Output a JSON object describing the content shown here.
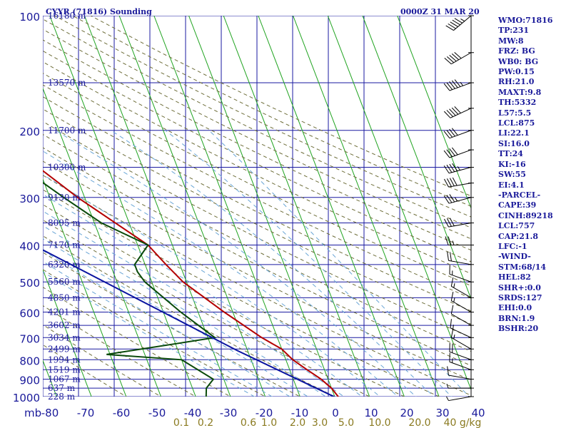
{
  "header": {
    "title": "CYYR (71816) Sounding",
    "time": "0000Z 31 MAR 20"
  },
  "indices": [
    "WMO:71816",
    "TP:231",
    "MW:8",
    "FRZ: BG",
    "WB0: BG",
    "PW:0.15",
    "RH:21.0",
    "MAXT:9.8",
    "TH:5332",
    "L57:5.5",
    "LCL:875",
    "LI:22.1",
    "SI:16.0",
    "TT:24",
    "KI:-16",
    "SW:55",
    "EI:4.1",
    "-PARCEL-",
    "CAPE:39",
    "CINH:89218",
    "LCL:757",
    "CAP:21.8",
    "LFC:-1",
    "-WIND-",
    "STM:68/14",
    "HEL:82",
    "SHR+:0.0",
    "SRDS:127",
    "EHI:0.0",
    "BRN:1.9",
    "BSHR:20"
  ],
  "chart_data": {
    "type": "line",
    "title": "CYYR (71816) Sounding",
    "ylabel": "mb",
    "ylim": [
      1000,
      100
    ],
    "xlim": [
      -80,
      0
    ],
    "pressure_ticks": [
      100,
      200,
      300,
      400,
      500,
      600,
      700,
      800,
      900,
      1000
    ],
    "temperature_ticks": [
      "-80",
      "-70",
      "-60",
      "-50",
      "-40",
      "-30",
      "-20",
      "-10",
      "0",
      "10",
      "20",
      "30",
      "40"
    ],
    "mixing_ratio_labels": [
      "0.1",
      "0.2",
      "0.6",
      "1.0",
      "2.0",
      "3.0",
      "5.0",
      "10.0",
      "20.0",
      "40 g/kg"
    ],
    "height_labels": [
      {
        "p": 100,
        "label": "16180 m"
      },
      {
        "p": 150,
        "label": "13570 m"
      },
      {
        "p": 200,
        "label": "11700 m"
      },
      {
        "p": 250,
        "label": "10300 m"
      },
      {
        "p": 300,
        "label": "9130 m"
      },
      {
        "p": 350,
        "label": "8095 m"
      },
      {
        "p": 400,
        "label": "7170 m"
      },
      {
        "p": 450,
        "label": "6320 m"
      },
      {
        "p": 500,
        "label": "5560 m"
      },
      {
        "p": 550,
        "label": "4850 m"
      },
      {
        "p": 600,
        "label": "4201 m"
      },
      {
        "p": 650,
        "label": "3602 m"
      },
      {
        "p": 700,
        "label": "3034 m"
      },
      {
        "p": 750,
        "label": "2499 m"
      },
      {
        "p": 800,
        "label": "1994 m"
      },
      {
        "p": 850,
        "label": "1519 m"
      },
      {
        "p": 900,
        "label": "1067 m"
      },
      {
        "p": 950,
        "label": "637 m"
      },
      {
        "p": 1000,
        "label": "228 m"
      }
    ],
    "series": [
      {
        "name": "Temperature",
        "color": "#b40000",
        "points": [
          {
            "p": 100,
            "t": -55
          },
          {
            "p": 110,
            "t": -55.5
          },
          {
            "p": 125,
            "t": -58
          },
          {
            "p": 140,
            "t": -57
          },
          {
            "p": 155,
            "t": -54
          },
          {
            "p": 170,
            "t": -54
          },
          {
            "p": 190,
            "t": -57
          },
          {
            "p": 200,
            "t": -58
          },
          {
            "p": 220,
            "t": -61
          },
          {
            "p": 230,
            "t": -62
          },
          {
            "p": 250,
            "t": -60
          },
          {
            "p": 300,
            "t": -52
          },
          {
            "p": 400,
            "t": -37
          },
          {
            "p": 450,
            "t": -34
          },
          {
            "p": 500,
            "t": -31
          },
          {
            "p": 600,
            "t": -22.5
          },
          {
            "p": 700,
            "t": -14.5
          },
          {
            "p": 750,
            "t": -10
          },
          {
            "p": 800,
            "t": -8
          },
          {
            "p": 850,
            "t": -5
          },
          {
            "p": 900,
            "t": -2
          },
          {
            "p": 950,
            "t": 0
          },
          {
            "p": 1000,
            "t": 1
          },
          {
            "p": 1015,
            "t": 1
          }
        ]
      },
      {
        "name": "Dewpoint",
        "color": "#0a4a0a",
        "points": [
          {
            "p": 100,
            "t": -84
          },
          {
            "p": 120,
            "t": -82
          },
          {
            "p": 130,
            "t": -79
          },
          {
            "p": 150,
            "t": -78
          },
          {
            "p": 175,
            "t": -71
          },
          {
            "p": 200,
            "t": -64
          },
          {
            "p": 220,
            "t": -67
          },
          {
            "p": 230,
            "t": -68
          },
          {
            "p": 260,
            "t": -63
          },
          {
            "p": 300,
            "t": -56
          },
          {
            "p": 350,
            "t": -48
          },
          {
            "p": 400,
            "t": -37
          },
          {
            "p": 450,
            "t": -43
          },
          {
            "p": 470,
            "t": -43
          },
          {
            "p": 500,
            "t": -42
          },
          {
            "p": 600,
            "t": -35
          },
          {
            "p": 700,
            "t": -28
          },
          {
            "p": 775,
            "t": -61
          },
          {
            "p": 800,
            "t": -40
          },
          {
            "p": 900,
            "t": -33
          },
          {
            "p": 950,
            "t": -36
          },
          {
            "p": 1000,
            "t": -37
          },
          {
            "p": 1015,
            "t": -36
          }
        ]
      },
      {
        "name": "Parcel",
        "color": "#0a14a0",
        "points": [
          {
            "p": 1015,
            "t": 1
          },
          {
            "p": 757,
            "t": -23
          },
          {
            "p": 400,
            "t": -70
          },
          {
            "p": 280,
            "t": -85
          }
        ]
      }
    ],
    "wind_barbs": [
      {
        "p": 100,
        "dir": 230,
        "spd": 55
      },
      {
        "p": 125,
        "dir": 240,
        "spd": 50
      },
      {
        "p": 150,
        "dir": 250,
        "spd": 55
      },
      {
        "p": 175,
        "dir": 245,
        "spd": 50
      },
      {
        "p": 200,
        "dir": 250,
        "spd": 40
      },
      {
        "p": 225,
        "dir": 250,
        "spd": 40
      },
      {
        "p": 250,
        "dir": 255,
        "spd": 45
      },
      {
        "p": 275,
        "dir": 260,
        "spd": 40
      },
      {
        "p": 300,
        "dir": 255,
        "spd": 35
      },
      {
        "p": 350,
        "dir": 260,
        "spd": 30
      },
      {
        "p": 400,
        "dir": 270,
        "spd": 25
      },
      {
        "p": 450,
        "dir": 280,
        "spd": 20
      },
      {
        "p": 500,
        "dir": 290,
        "spd": 15
      },
      {
        "p": 550,
        "dir": 300,
        "spd": 15
      },
      {
        "p": 600,
        "dir": 300,
        "spd": 15
      },
      {
        "p": 650,
        "dir": 300,
        "spd": 10
      },
      {
        "p": 700,
        "dir": 295,
        "spd": 15
      },
      {
        "p": 750,
        "dir": 300,
        "spd": 15
      },
      {
        "p": 800,
        "dir": 290,
        "spd": 20
      },
      {
        "p": 850,
        "dir": 290,
        "spd": 15
      },
      {
        "p": 900,
        "dir": 280,
        "spd": 10
      },
      {
        "p": 950,
        "dir": 270,
        "spd": 5
      },
      {
        "p": 1000,
        "dir": 260,
        "spd": 5
      }
    ],
    "colors": {
      "isobar": "#1a1aa0",
      "isotherm": "#1fa31f",
      "dry_adiabat": "#6e6e3a",
      "moist_adiabat": "#6aa6d6",
      "temperature": "#b40000",
      "dewpoint": "#0a4a0a",
      "parcel": "#0a14a0",
      "text": "#1a1a9a",
      "mixing_label": "#8a7a20"
    }
  }
}
